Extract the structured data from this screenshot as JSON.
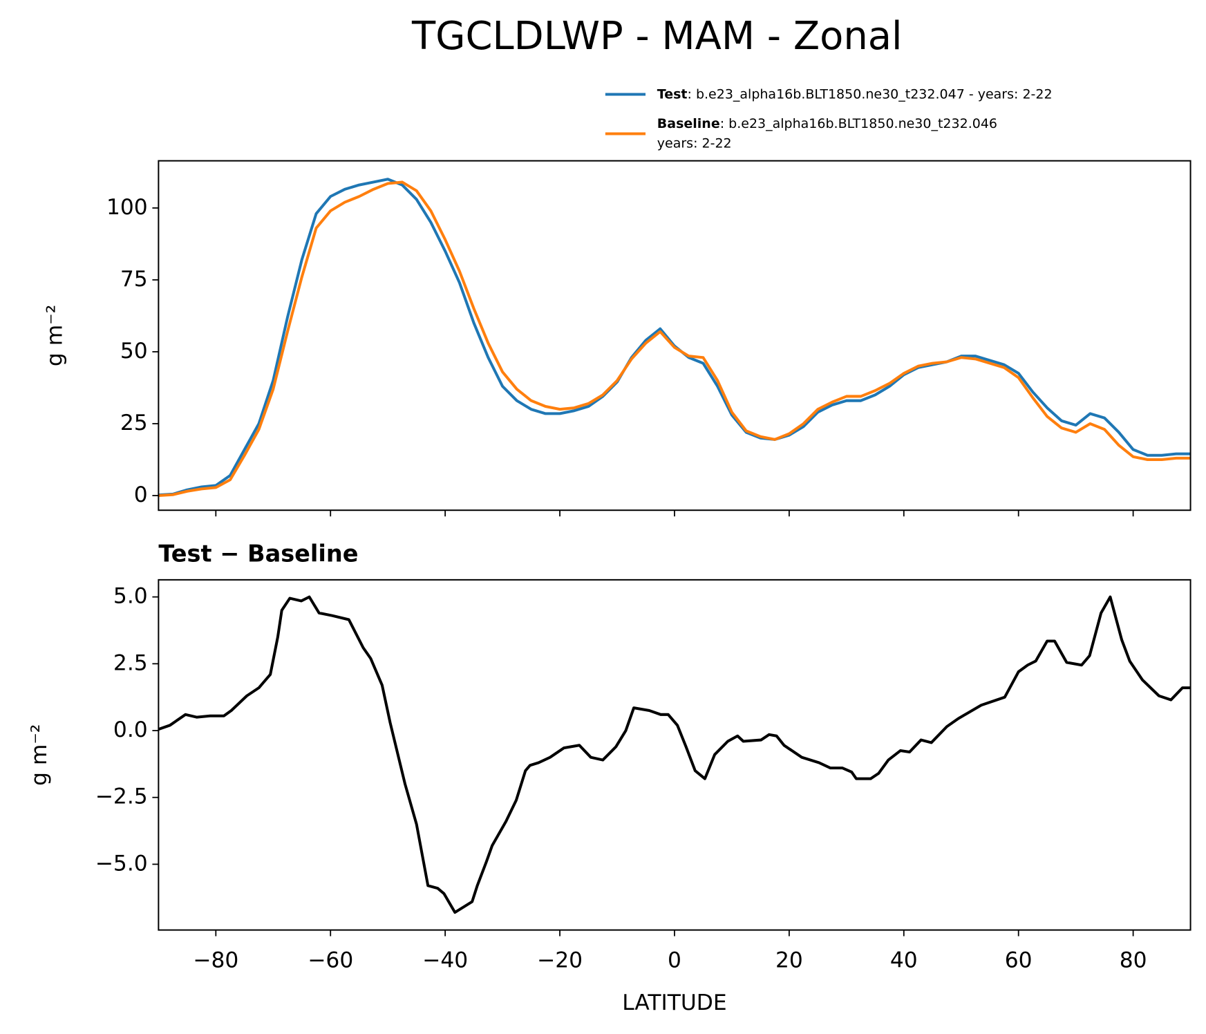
{
  "chart_data": [
    {
      "type": "line",
      "title": "TGCLDLWP - MAM - Zonal",
      "ylabel": "g m⁻²",
      "x": [
        -90,
        -87.5,
        -85,
        -82.5,
        -80,
        -77.5,
        -75,
        -72.5,
        -70,
        -67.5,
        -65,
        -62.5,
        -60,
        -57.5,
        -55,
        -52.5,
        -50,
        -47.5,
        -45,
        -42.5,
        -40,
        -37.5,
        -35,
        -32.5,
        -30,
        -27.5,
        -25,
        -22.5,
        -20,
        -17.5,
        -15,
        -12.5,
        -10,
        -7.5,
        -5,
        -2.5,
        0,
        2.5,
        5,
        7.5,
        10,
        12.5,
        15,
        17.5,
        20,
        22.5,
        25,
        27.5,
        30,
        32.5,
        35,
        37.5,
        40,
        42.5,
        45,
        47.5,
        50,
        52.5,
        55,
        57.5,
        60,
        62.5,
        65,
        67.5,
        70,
        72.5,
        75,
        77.5,
        80,
        82.5,
        85,
        87.5,
        90
      ],
      "series": [
        {
          "name": "Test",
          "legend_text": [
            ": b.e23_alpha16b.BLT1850.ne30_t232.047 - years: 2-22"
          ],
          "color": "#1f77b4",
          "values": [
            0.2,
            0.5,
            2,
            3,
            3.5,
            7,
            16,
            25,
            40,
            62,
            82,
            98,
            104,
            106.5,
            108,
            109,
            110,
            108,
            103,
            95,
            85,
            74,
            60,
            48,
            38,
            33,
            30,
            28.5,
            28.5,
            29.5,
            31,
            34.5,
            39.5,
            48,
            54,
            58,
            52,
            48,
            46,
            38,
            28,
            22,
            20,
            19.5,
            21,
            24,
            29,
            31.5,
            33,
            33,
            35,
            38,
            42,
            44.5,
            45.5,
            46.5,
            48.5,
            48.5,
            47,
            45.5,
            42.5,
            36,
            30.5,
            26,
            24.5,
            28.5,
            27,
            22,
            16,
            14,
            14,
            14.5,
            14.5
          ]
        },
        {
          "name": "Baseline",
          "legend_text": [
            ": b.e23_alpha16b.BLT1850.ne30_t232.046",
            "years: 2-22"
          ],
          "color": "#ff7f0e",
          "values": [
            0,
            0.3,
            1.5,
            2.3,
            2.8,
            5.5,
            14,
            23,
            37,
            57,
            76,
            93,
            99,
            102,
            104,
            106.5,
            108.5,
            109,
            106,
            99,
            89,
            78,
            65,
            53,
            43,
            37,
            33,
            31,
            30,
            30.5,
            32,
            35,
            40,
            47.5,
            53,
            57,
            51.5,
            48.5,
            48,
            40,
            29,
            22.5,
            20.5,
            19.5,
            21.5,
            25,
            30,
            32.5,
            34.5,
            34.5,
            36.5,
            39,
            42.5,
            45,
            46,
            46.5,
            48,
            47.5,
            46,
            44.5,
            41,
            34,
            27.5,
            23.5,
            22,
            25,
            23,
            17.5,
            13.5,
            12.5,
            12.5,
            13,
            13
          ]
        }
      ],
      "xlim": [
        -90,
        90
      ],
      "xticks": [
        -80,
        -60,
        -40,
        -20,
        0,
        20,
        40,
        60,
        80
      ],
      "x_tick_labels": false,
      "ylim": [
        -5.1,
        116.4
      ],
      "yticks": [
        0,
        25,
        50,
        75,
        100
      ]
    },
    {
      "type": "line",
      "title": "Test − Baseline",
      "ylabel": "g m⁻²",
      "xlabel": "LATITUDE",
      "x": [
        -90,
        -88,
        -85.3,
        -83.3,
        -81,
        -78.6,
        -77.3,
        -74.6,
        -72.5,
        -70.5,
        -69.2,
        -68.5,
        -67.1,
        -65.1,
        -63.7,
        -62,
        -59.7,
        -56.8,
        -54.3,
        -53,
        -51,
        -49.6,
        -47,
        -45,
        -43,
        -41.3,
        -40.2,
        -38.3,
        -36.8,
        -35.3,
        -34.4,
        -32.8,
        -31.8,
        -29.4,
        -27.6,
        -26,
        -25.2,
        -23.7,
        -21.7,
        -19.3,
        -16.6,
        -14.6,
        -12.5,
        -10.2,
        -8.5,
        -7.1,
        -4.4,
        -2.4,
        -1.1,
        0.5,
        2,
        3.6,
        5.3,
        7,
        9.3,
        11,
        12,
        15.1,
        16.5,
        17.8,
        19.1,
        22.2,
        25.2,
        27.2,
        29.3,
        30.9,
        31.7,
        34.2,
        35.6,
        37.3,
        39.4,
        41,
        43,
        44.8,
        47.5,
        49.5,
        53.5,
        57.6,
        60,
        61.6,
        63,
        65,
        66.3,
        68.4,
        71,
        72.4,
        74.4,
        76,
        78,
        79.4,
        81.6,
        84.5,
        86.6,
        88.6,
        90
      ],
      "series": [
        {
          "name": "Test − Baseline",
          "color": "#000000",
          "values": [
            0.05,
            0.2,
            0.6,
            0.5,
            0.55,
            0.55,
            0.75,
            1.3,
            1.6,
            2.1,
            3.5,
            4.5,
            4.95,
            4.85,
            5.0,
            4.4,
            4.3,
            4.15,
            3.1,
            2.7,
            1.7,
            0.3,
            -2.0,
            -3.5,
            -5.8,
            -5.9,
            -6.1,
            -6.8,
            -6.6,
            -6.4,
            -5.8,
            -4.9,
            -4.3,
            -3.4,
            -2.6,
            -1.5,
            -1.3,
            -1.2,
            -1.0,
            -0.65,
            -0.55,
            -1.0,
            -1.1,
            -0.6,
            0.0,
            0.85,
            0.75,
            0.6,
            0.6,
            0.2,
            -0.6,
            -1.5,
            -1.8,
            -0.9,
            -0.4,
            -0.2,
            -0.4,
            -0.35,
            -0.15,
            -0.2,
            -0.55,
            -1.0,
            -1.2,
            -1.4,
            -1.4,
            -1.55,
            -1.8,
            -1.8,
            -1.6,
            -1.1,
            -0.75,
            -0.8,
            -0.35,
            -0.45,
            0.15,
            0.45,
            0.95,
            1.25,
            2.2,
            2.45,
            2.6,
            3.35,
            3.35,
            2.55,
            2.45,
            2.8,
            4.4,
            5.0,
            3.4,
            2.6,
            1.9,
            1.3,
            1.15,
            1.6,
            1.6
          ]
        }
      ],
      "xlim": [
        -90,
        90
      ],
      "xticks": [
        {
          "value": -80,
          "label": "−80"
        },
        {
          "value": -60,
          "label": "−60"
        },
        {
          "value": -40,
          "label": "−40"
        },
        {
          "value": -20,
          "label": "−20"
        },
        0,
        20,
        40,
        60,
        80
      ],
      "x_tick_labels": true,
      "ylim": [
        -7.46,
        5.64
      ],
      "yticks": [
        {
          "value": 5,
          "label": "5.0"
        },
        {
          "value": 2.5,
          "label": "2.5"
        },
        {
          "value": 0,
          "label": "0.0"
        },
        {
          "value": -2.5,
          "label": "−2.5"
        },
        {
          "value": -5,
          "label": "−5.0"
        }
      ]
    }
  ]
}
